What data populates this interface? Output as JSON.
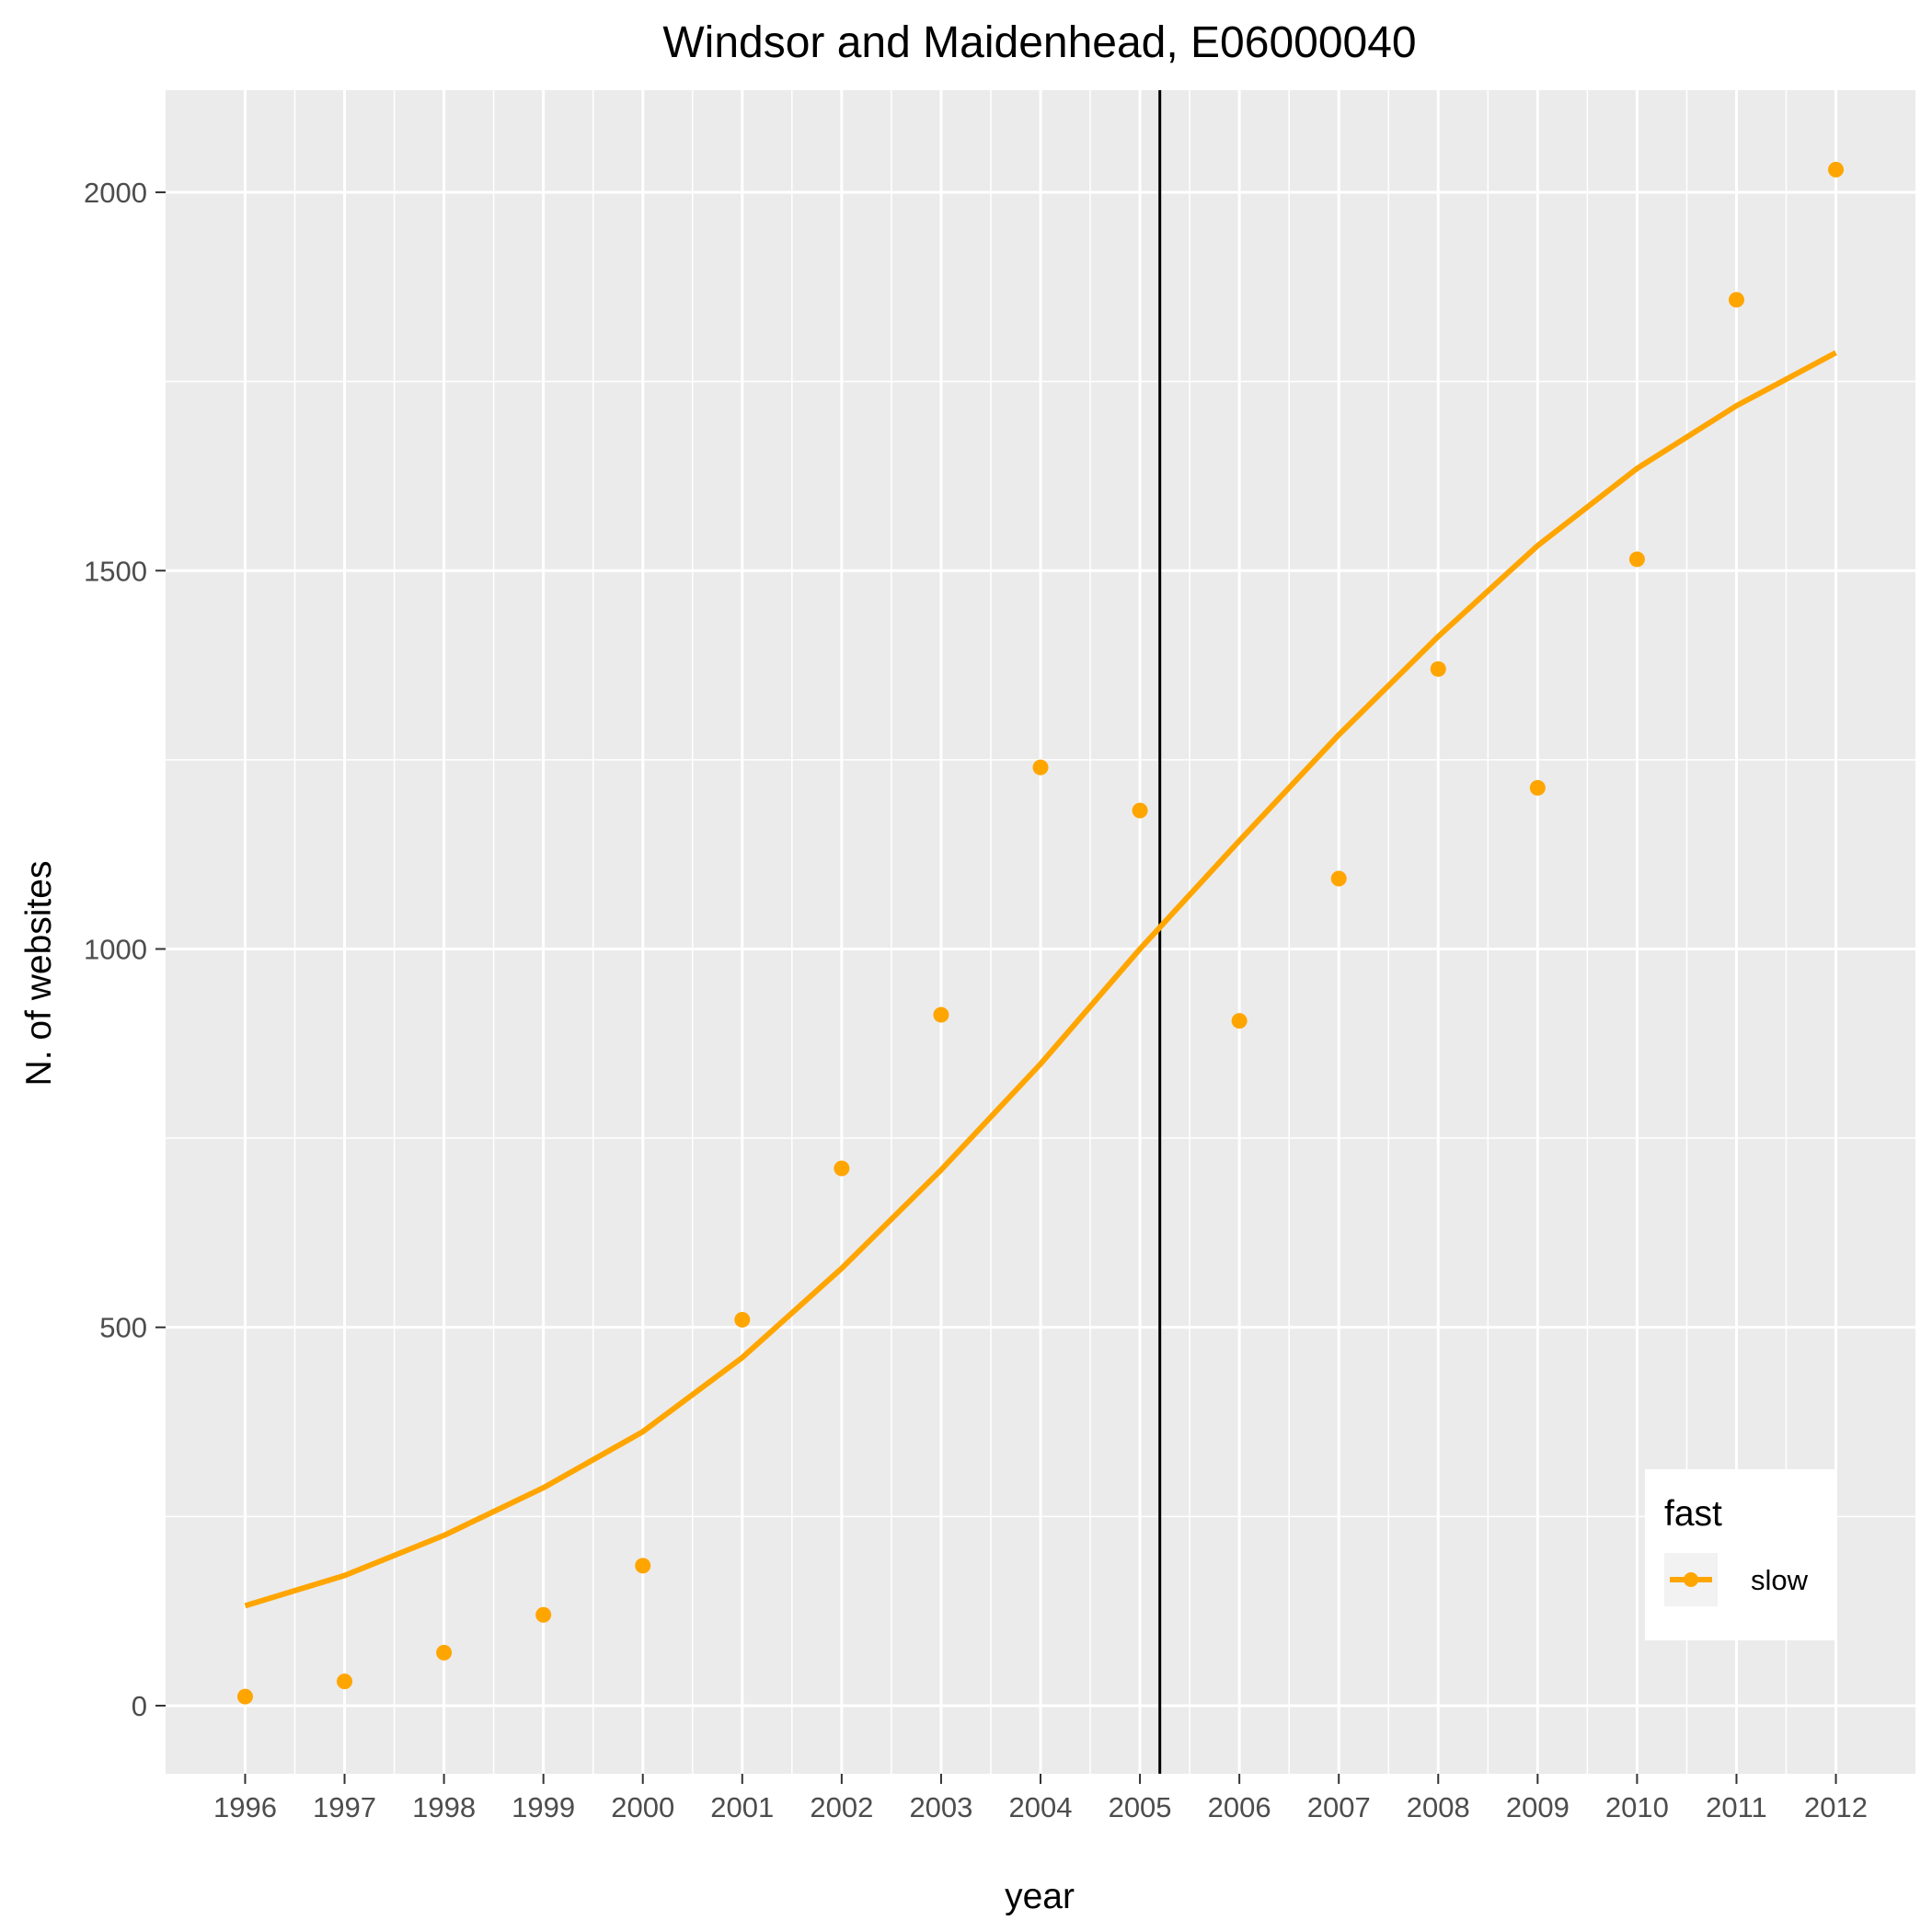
{
  "chart_data": {
    "type": "line",
    "title": "Windsor and Maidenhead, E06000040",
    "xlabel": "year",
    "ylabel": "N. of websites",
    "x": [
      1996,
      1997,
      1998,
      1999,
      2000,
      2001,
      2002,
      2003,
      2004,
      2005,
      2006,
      2007,
      2008,
      2009,
      2010,
      2011,
      2012
    ],
    "xticks": [
      "1996",
      "1997",
      "1998",
      "1999",
      "2000",
      "2001",
      "2002",
      "2003",
      "2004",
      "2005",
      "2006",
      "2007",
      "2008",
      "2009",
      "2010",
      "2011",
      "2012"
    ],
    "yticks": [
      0,
      500,
      1000,
      1500,
      2000
    ],
    "ytick_labels": [
      "0",
      "500",
      "1000",
      "1500",
      "2000"
    ],
    "xlim": [
      1995.2,
      2012.8
    ],
    "ylim": [
      -90,
      2135
    ],
    "grid": true,
    "vline_x": 2005.2,
    "series": [
      {
        "name": "slow",
        "color": "#FFA500",
        "points": [
          12,
          32,
          70,
          120,
          185,
          510,
          710,
          913,
          1240,
          1183,
          905,
          1093,
          1370,
          1213,
          1515,
          1858,
          2030
        ],
        "smooth": [
          132,
          172,
          225,
          288,
          362,
          460,
          578,
          708,
          848,
          1000,
          1143,
          1283,
          1413,
          1533,
          1635,
          1718,
          1788
        ]
      }
    ],
    "legend": {
      "title": "fast",
      "position": "inside-bottom-right",
      "items": [
        "slow"
      ]
    }
  }
}
